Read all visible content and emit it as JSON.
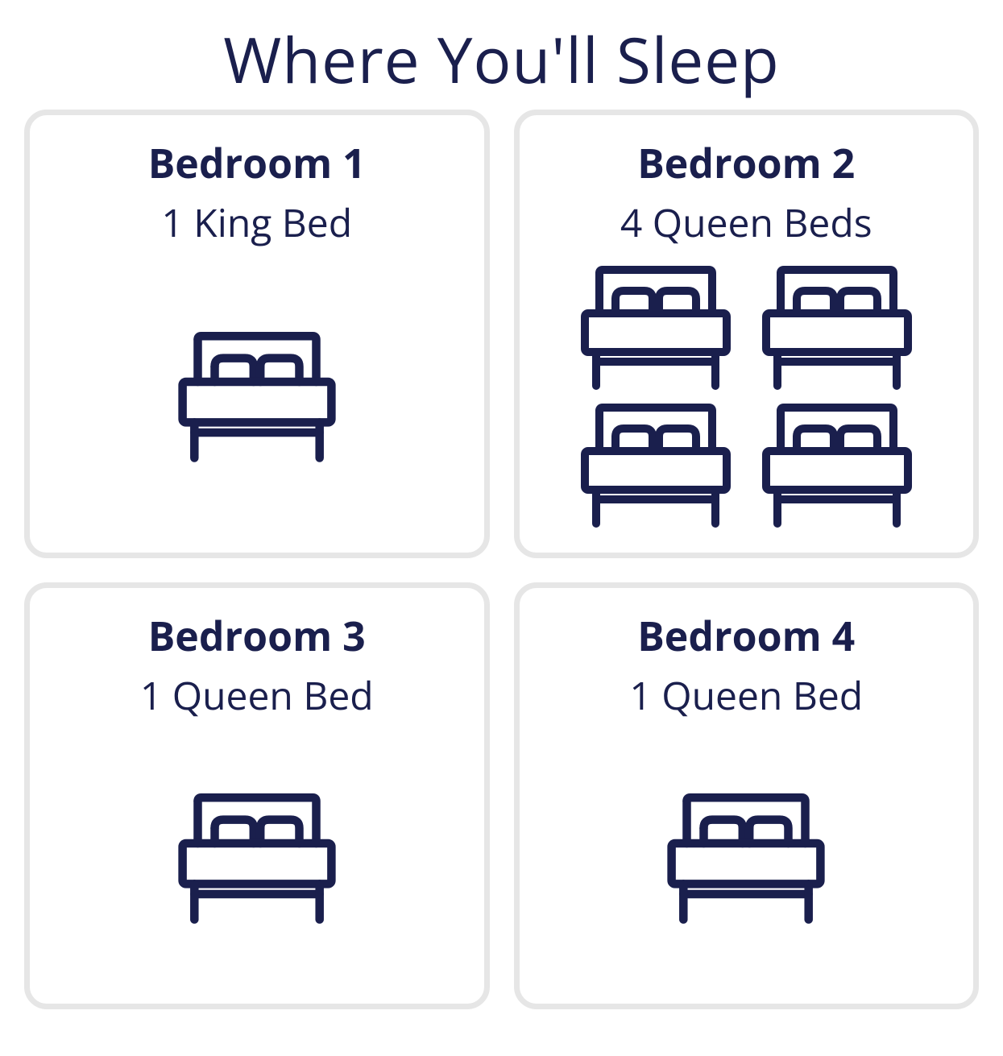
{
  "title": "Where You'll Sleep",
  "colors": {
    "primary": "#1a1f4d",
    "border": "#e6e6e6",
    "background": "#ffffff"
  },
  "typography": {
    "title_fontsize": 78,
    "room_name_fontsize": 50,
    "room_name_weight": 700,
    "room_desc_fontsize": 48,
    "room_desc_weight": 400
  },
  "layout": {
    "columns": 2,
    "card_border_radius": 28,
    "card_border_width": 7,
    "card_min_height": 530
  },
  "rooms": [
    {
      "name": "Bedroom 1",
      "description": "1 King Bed",
      "icon_count": 1,
      "icon_layout": "single",
      "icon_size": 210
    },
    {
      "name": "Bedroom 2",
      "description": "4 Queen Beds",
      "icon_count": 4,
      "icon_layout": "grid2x2",
      "icon_size": 200
    },
    {
      "name": "Bedroom 3",
      "description": "1 Queen Bed",
      "icon_count": 1,
      "icon_layout": "single",
      "icon_size": 210
    },
    {
      "name": "Bedroom 4",
      "description": "1 Queen Bed",
      "icon_count": 1,
      "icon_layout": "single",
      "icon_size": 210
    }
  ],
  "icon": {
    "stroke_color": "#1a1f4d",
    "stroke_width": 10
  }
}
